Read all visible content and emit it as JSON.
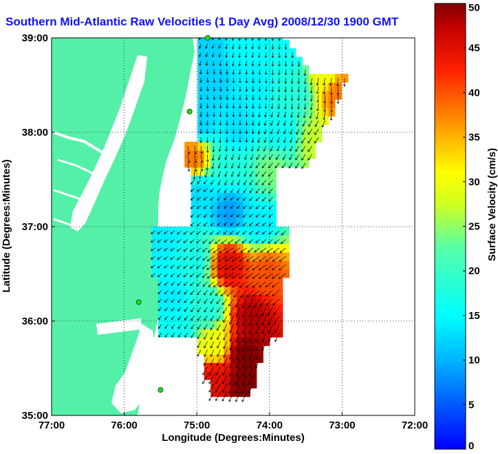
{
  "title": "Southern Mid-Atlantic Raw Velocities (1 Day Avg) 2008/12/30 1900 GMT",
  "colors": {
    "land": "#55f0a8",
    "title": "#1010ff"
  },
  "chart_data": {
    "type": "heatmap",
    "title": "Southern Mid-Atlantic Raw Velocities (1 Day Avg) 2008/12/30 1900 GMT",
    "xlabel": "Longitude (Degrees:Minutes)",
    "ylabel": "Latitude (Degrees:Minutes)",
    "xlim": [
      -77,
      -72
    ],
    "ylim": [
      35,
      39
    ],
    "xticks": [
      {
        "value": -77,
        "label": "77:00"
      },
      {
        "value": -76,
        "label": "76:00"
      },
      {
        "value": -75,
        "label": "75:00"
      },
      {
        "value": -74,
        "label": "74:00"
      },
      {
        "value": -73,
        "label": "73:00"
      },
      {
        "value": -72,
        "label": "72:00"
      }
    ],
    "yticks": [
      {
        "value": 35,
        "label": "35:00"
      },
      {
        "value": 36,
        "label": "36:00"
      },
      {
        "value": 37,
        "label": "37:00"
      },
      {
        "value": 38,
        "label": "38:00"
      },
      {
        "value": 39,
        "label": "39:00"
      }
    ],
    "grid": true,
    "colorbar": {
      "label": "Surface Velocity (cm/s)",
      "range": [
        0,
        50
      ],
      "ticks": [
        0,
        5,
        10,
        15,
        20,
        25,
        30,
        35,
        40,
        45,
        50
      ],
      "colormap": "jet"
    },
    "stations": [
      {
        "lon": -74.85,
        "lat": 39.0
      },
      {
        "lon": -75.1,
        "lat": 38.22
      },
      {
        "lon": -75.8,
        "lat": 36.2
      },
      {
        "lon": -75.5,
        "lat": 35.27
      }
    ],
    "velocity_field": [
      {
        "lon": -74.9,
        "lat": 38.9,
        "speed": 12,
        "dir": 200
      },
      {
        "lon": -74.4,
        "lat": 38.85,
        "speed": 15,
        "dir": 190
      },
      {
        "lon": -73.8,
        "lat": 38.8,
        "speed": 16,
        "dir": 180
      },
      {
        "lon": -73.3,
        "lat": 38.6,
        "speed": 30,
        "dir": 190
      },
      {
        "lon": -73.1,
        "lat": 38.35,
        "speed": 38,
        "dir": 180
      },
      {
        "lon": -74.8,
        "lat": 38.5,
        "speed": 12,
        "dir": 175
      },
      {
        "lon": -74.3,
        "lat": 38.45,
        "speed": 14,
        "dir": 180
      },
      {
        "lon": -73.7,
        "lat": 38.4,
        "speed": 18,
        "dir": 185
      },
      {
        "lon": -75.0,
        "lat": 38.05,
        "speed": 12,
        "dir": 180
      },
      {
        "lon": -74.5,
        "lat": 38.0,
        "speed": 13,
        "dir": 180
      },
      {
        "lon": -73.9,
        "lat": 37.95,
        "speed": 16,
        "dir": 200
      },
      {
        "lon": -73.4,
        "lat": 37.85,
        "speed": 27,
        "dir": 215
      },
      {
        "lon": -75.1,
        "lat": 37.7,
        "speed": 38,
        "dir": 170
      },
      {
        "lon": -74.6,
        "lat": 37.6,
        "speed": 18,
        "dir": 200
      },
      {
        "lon": -74.0,
        "lat": 37.55,
        "speed": 24,
        "dir": 220
      },
      {
        "lon": -75.0,
        "lat": 37.3,
        "speed": 13,
        "dir": 230
      },
      {
        "lon": -74.6,
        "lat": 37.1,
        "speed": 9,
        "dir": 225
      },
      {
        "lon": -74.2,
        "lat": 37.0,
        "speed": 14,
        "dir": 230
      },
      {
        "lon": -75.5,
        "lat": 36.8,
        "speed": 14,
        "dir": 235
      },
      {
        "lon": -75.1,
        "lat": 36.6,
        "speed": 17,
        "dir": 230
      },
      {
        "lon": -74.6,
        "lat": 36.55,
        "speed": 45,
        "dir": 240
      },
      {
        "lon": -74.1,
        "lat": 36.45,
        "speed": 40,
        "dir": 235
      },
      {
        "lon": -75.4,
        "lat": 36.2,
        "speed": 14,
        "dir": 225
      },
      {
        "lon": -74.9,
        "lat": 36.1,
        "speed": 18,
        "dir": 215
      },
      {
        "lon": -74.3,
        "lat": 36.0,
        "speed": 48,
        "dir": 200
      },
      {
        "lon": -75.3,
        "lat": 35.8,
        "speed": 16,
        "dir": 215
      },
      {
        "lon": -74.8,
        "lat": 35.7,
        "speed": 30,
        "dir": 205
      },
      {
        "lon": -74.4,
        "lat": 35.6,
        "speed": 50,
        "dir": 200
      },
      {
        "lon": -74.8,
        "lat": 35.35,
        "speed": 45,
        "dir": 210
      },
      {
        "lon": -74.4,
        "lat": 35.3,
        "speed": 50,
        "dir": 205
      }
    ]
  }
}
